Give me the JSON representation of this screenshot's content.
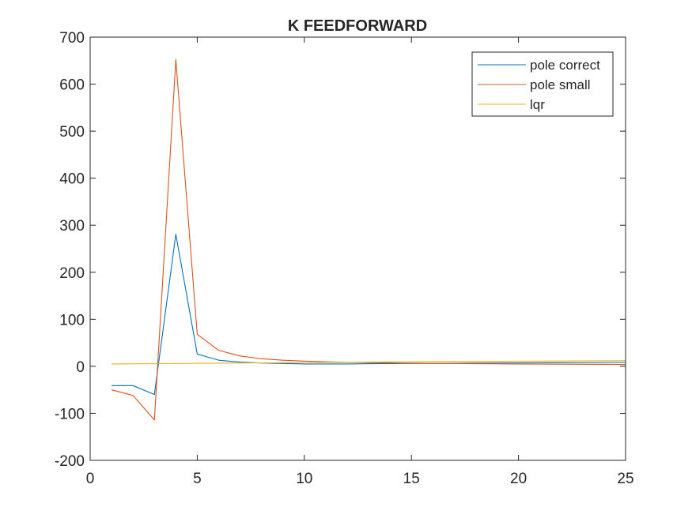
{
  "chart_data": {
    "type": "line",
    "title": "K FEEDFORWARD",
    "xlabel": "",
    "ylabel": "",
    "xlim": [
      0,
      25
    ],
    "ylim": [
      -200,
      700
    ],
    "xticks": [
      0,
      5,
      10,
      15,
      20,
      25
    ],
    "yticks": [
      -200,
      -100,
      0,
      100,
      200,
      300,
      400,
      500,
      600,
      700
    ],
    "grid": false,
    "legend_position": "top-right",
    "series": [
      {
        "name": "pole correct",
        "color": "#0072BD",
        "x": [
          1,
          2,
          3,
          4,
          5,
          6,
          7,
          8,
          9,
          10,
          11,
          12,
          13,
          14,
          15,
          16,
          17,
          18,
          19,
          20,
          21,
          22,
          23,
          24,
          25
        ],
        "y": [
          -41,
          -41,
          -60,
          281,
          26,
          13,
          9,
          7,
          6,
          5,
          5,
          5,
          5.5,
          5.8,
          6,
          6.3,
          6.5,
          6.8,
          7,
          7.2,
          7.4,
          7.6,
          7.8,
          8,
          8.2
        ]
      },
      {
        "name": "pole small",
        "color": "#D95319",
        "x": [
          1,
          2,
          3,
          4,
          5,
          6,
          7,
          8,
          9,
          10,
          11,
          12,
          13,
          14,
          15,
          16,
          17,
          18,
          19,
          20,
          21,
          22,
          23,
          24,
          25
        ],
        "y": [
          -50,
          -62,
          -114,
          652,
          68,
          34,
          22,
          16,
          13,
          11,
          9.5,
          8.5,
          7.8,
          7.2,
          6.7,
          6.3,
          6,
          5.6,
          5.3,
          5,
          4.8,
          4.5,
          4.3,
          4.1,
          3.9
        ]
      },
      {
        "name": "lqr",
        "color": "#EDB120",
        "x": [
          1,
          2,
          3,
          4,
          5,
          6,
          7,
          8,
          9,
          10,
          11,
          12,
          13,
          14,
          15,
          16,
          17,
          18,
          19,
          20,
          21,
          22,
          23,
          24,
          25
        ],
        "y": [
          5,
          5.3,
          5.6,
          6,
          6.3,
          6.6,
          7,
          7.3,
          7.6,
          8,
          8.3,
          8.6,
          9,
          9.3,
          9.6,
          10,
          10.2,
          10.4,
          10.6,
          10.8,
          11,
          11.2,
          11.4,
          11.6,
          11.8
        ]
      }
    ]
  }
}
